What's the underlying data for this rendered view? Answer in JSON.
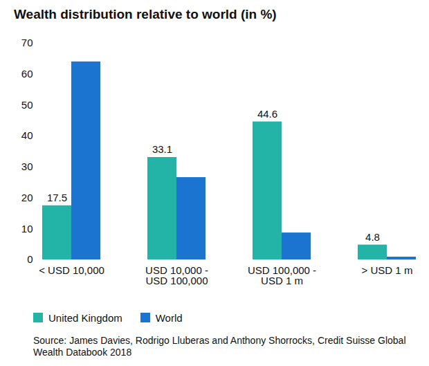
{
  "chart_data": {
    "type": "bar",
    "title": "Wealth distribution relative to world (in %)",
    "caption": "Source: James Davies, Rodrigo Lluberas and Anthony Shorrocks, Credit Suisse Global Wealth Databook 2018",
    "categories": [
      "< USD 10,000",
      "USD 10,000 - USD 100,000",
      "USD 100,000 - USD 1 m",
      "> USD 1 m"
    ],
    "series": [
      {
        "name": "United Kingdom",
        "color": "#23b3a7",
        "values": [
          17.5,
          33.1,
          44.6,
          4.8
        ],
        "data_labels": true
      },
      {
        "name": "World",
        "color": "#1a74d0",
        "values": [
          64,
          26.6,
          8.7,
          0.9
        ]
      }
    ],
    "ylim": [
      0,
      70
    ],
    "yticks": [
      0,
      10,
      20,
      30,
      40,
      50,
      60,
      70
    ],
    "grid": false,
    "legend": "bottom-left"
  }
}
